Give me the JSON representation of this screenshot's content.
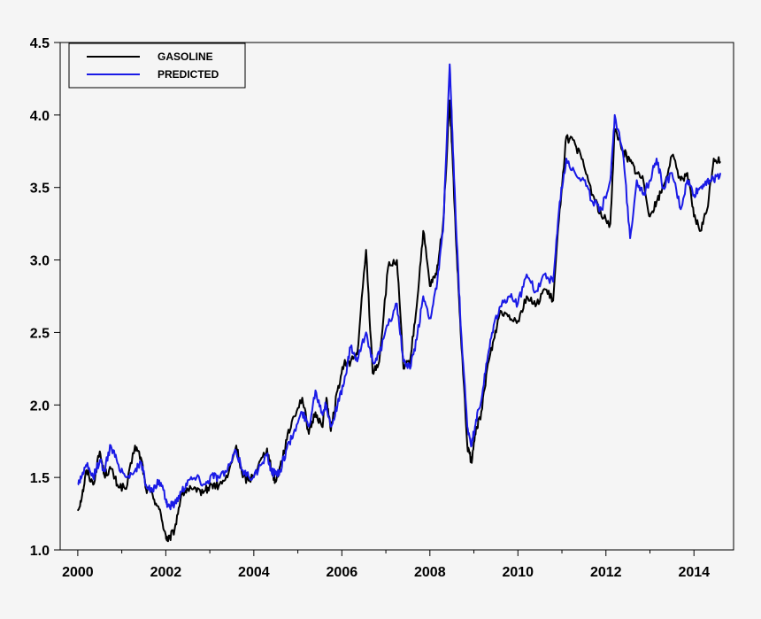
{
  "chart_data": {
    "type": "line",
    "title": "",
    "xlabel": "",
    "ylabel": "",
    "xlim": [
      1999.6,
      2014.9
    ],
    "ylim": [
      1.0,
      4.5
    ],
    "x_ticks": [
      2000,
      2002,
      2004,
      2006,
      2008,
      2010,
      2012,
      2014
    ],
    "x_tick_labels": [
      "2000",
      "2002",
      "2004",
      "2006",
      "2008",
      "2010",
      "2012",
      "2014"
    ],
    "y_ticks": [
      1.0,
      1.5,
      2.0,
      2.5,
      3.0,
      3.5,
      4.0,
      4.5
    ],
    "y_tick_labels": [
      "1.0",
      "1.5",
      "2.0",
      "2.5",
      "3.0",
      "3.5",
      "4.0",
      "4.5"
    ],
    "grid": false,
    "legend_position": "top-left",
    "series": [
      {
        "name": "GASOLINE",
        "color": "#000000",
        "x": [
          2000.0,
          2000.1,
          2000.2,
          2000.35,
          2000.5,
          2000.6,
          2000.75,
          2000.9,
          2001.1,
          2001.3,
          2001.45,
          2001.55,
          2001.7,
          2001.85,
          2002.0,
          2002.05,
          2002.2,
          2002.35,
          2002.5,
          2002.7,
          2002.9,
          2003.05,
          2003.2,
          2003.4,
          2003.6,
          2003.75,
          2003.9,
          2004.1,
          2004.3,
          2004.4,
          2004.5,
          2004.6,
          2004.75,
          2004.9,
          2005.1,
          2005.25,
          2005.4,
          2005.55,
          2005.65,
          2005.75,
          2005.9,
          2006.05,
          2006.2,
          2006.35,
          2006.55,
          2006.7,
          2006.85,
          2007.05,
          2007.25,
          2007.4,
          2007.55,
          2007.7,
          2007.85,
          2008.0,
          2008.15,
          2008.3,
          2008.45,
          2008.5,
          2008.6,
          2008.7,
          2008.85,
          2008.95,
          2009.05,
          2009.15,
          2009.3,
          2009.45,
          2009.6,
          2009.8,
          2010.0,
          2010.2,
          2010.4,
          2010.6,
          2010.8,
          2010.95,
          2011.1,
          2011.3,
          2011.5,
          2011.7,
          2011.9,
          2012.1,
          2012.2,
          2012.4,
          2012.55,
          2012.7,
          2012.85,
          2013.0,
          2013.15,
          2013.3,
          2013.5,
          2013.7,
          2013.85,
          2014.0,
          2014.15,
          2014.3,
          2014.45,
          2014.6
        ],
        "values": [
          1.27,
          1.38,
          1.55,
          1.45,
          1.68,
          1.52,
          1.56,
          1.45,
          1.42,
          1.72,
          1.62,
          1.42,
          1.38,
          1.28,
          1.1,
          1.06,
          1.14,
          1.38,
          1.42,
          1.4,
          1.41,
          1.45,
          1.44,
          1.5,
          1.72,
          1.5,
          1.48,
          1.58,
          1.7,
          1.55,
          1.47,
          1.58,
          1.76,
          1.92,
          2.05,
          1.8,
          1.95,
          1.85,
          2.05,
          1.82,
          2.1,
          2.28,
          2.3,
          2.35,
          3.07,
          2.22,
          2.3,
          2.95,
          3.0,
          2.25,
          2.3,
          2.68,
          3.2,
          2.82,
          2.9,
          3.25,
          4.1,
          3.8,
          3.1,
          2.5,
          1.72,
          1.6,
          1.85,
          1.9,
          2.25,
          2.45,
          2.65,
          2.62,
          2.58,
          2.75,
          2.68,
          2.8,
          2.72,
          3.35,
          3.85,
          3.8,
          3.65,
          3.45,
          3.3,
          3.25,
          3.9,
          3.75,
          3.68,
          3.6,
          3.55,
          3.3,
          3.4,
          3.5,
          3.72,
          3.55,
          3.6,
          3.3,
          3.2,
          3.35,
          3.7,
          3.68
        ],
        "x_extra_note": ""
      },
      {
        "name": "PREDICTED",
        "color": "#1a1ae6",
        "x": [
          2000.0,
          2000.1,
          2000.2,
          2000.35,
          2000.5,
          2000.6,
          2000.75,
          2000.9,
          2001.1,
          2001.3,
          2001.45,
          2001.55,
          2001.7,
          2001.85,
          2002.0,
          2002.05,
          2002.2,
          2002.35,
          2002.5,
          2002.7,
          2002.9,
          2003.05,
          2003.2,
          2003.4,
          2003.6,
          2003.75,
          2003.9,
          2004.1,
          2004.3,
          2004.4,
          2004.5,
          2004.6,
          2004.75,
          2004.9,
          2005.1,
          2005.25,
          2005.4,
          2005.55,
          2005.65,
          2005.75,
          2005.9,
          2006.05,
          2006.2,
          2006.35,
          2006.55,
          2006.7,
          2006.85,
          2007.05,
          2007.25,
          2007.4,
          2007.55,
          2007.7,
          2007.85,
          2008.0,
          2008.15,
          2008.3,
          2008.45,
          2008.5,
          2008.6,
          2008.7,
          2008.85,
          2008.95,
          2009.05,
          2009.15,
          2009.3,
          2009.45,
          2009.6,
          2009.8,
          2010.0,
          2010.2,
          2010.4,
          2010.6,
          2010.8,
          2010.95,
          2011.1,
          2011.3,
          2011.5,
          2011.7,
          2011.9,
          2012.1,
          2012.2,
          2012.4,
          2012.55,
          2012.7,
          2012.85,
          2013.0,
          2013.15,
          2013.3,
          2013.5,
          2013.7,
          2013.85,
          2014.0,
          2014.15,
          2014.3,
          2014.45,
          2014.6
        ],
        "values": [
          1.45,
          1.52,
          1.58,
          1.5,
          1.62,
          1.55,
          1.72,
          1.6,
          1.5,
          1.55,
          1.6,
          1.45,
          1.4,
          1.48,
          1.35,
          1.3,
          1.32,
          1.4,
          1.48,
          1.5,
          1.45,
          1.52,
          1.5,
          1.55,
          1.68,
          1.55,
          1.5,
          1.55,
          1.65,
          1.55,
          1.52,
          1.55,
          1.7,
          1.8,
          1.95,
          1.85,
          2.1,
          1.95,
          2.0,
          1.85,
          2.0,
          2.15,
          2.4,
          2.3,
          2.5,
          2.3,
          2.35,
          2.55,
          2.7,
          2.3,
          2.25,
          2.45,
          2.75,
          2.6,
          2.8,
          3.2,
          4.35,
          3.95,
          3.2,
          2.55,
          1.85,
          1.72,
          1.9,
          2.0,
          2.3,
          2.55,
          2.68,
          2.75,
          2.7,
          2.9,
          2.78,
          2.9,
          2.85,
          3.4,
          3.7,
          3.6,
          3.55,
          3.4,
          3.35,
          3.55,
          4.0,
          3.7,
          3.15,
          3.55,
          3.45,
          3.55,
          3.7,
          3.5,
          3.6,
          3.35,
          3.55,
          3.45,
          3.5,
          3.55,
          3.55,
          3.6
        ],
        "x_extra_note": ""
      }
    ]
  }
}
